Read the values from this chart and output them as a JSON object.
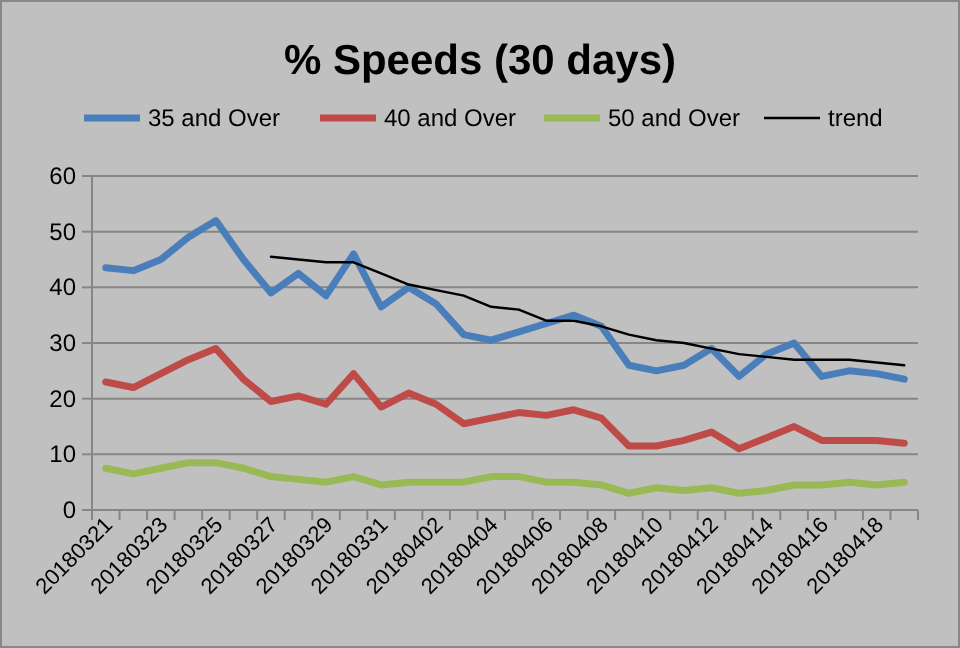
{
  "chart_data": {
    "type": "line",
    "title": "% Speeds (30 days)",
    "categories": [
      "20180321",
      null,
      "20180323",
      null,
      "20180325",
      null,
      "20180327",
      null,
      "20180329",
      null,
      "20180331",
      null,
      "20180402",
      null,
      "20180404",
      null,
      "20180406",
      null,
      "20180408",
      null,
      "20180410",
      null,
      "20180412",
      null,
      "20180414",
      null,
      "20180416",
      null,
      "20180418",
      null
    ],
    "series": [
      {
        "name": "35 and Over",
        "color": "#4a7ebb",
        "values": [
          43.5,
          43,
          45,
          49,
          52,
          45,
          39,
          42.5,
          38.5,
          46,
          36.5,
          40,
          37,
          31.5,
          30.5,
          32,
          33.5,
          35,
          33,
          26,
          25,
          26,
          29,
          24,
          28,
          30,
          24,
          25,
          24.5,
          23.5
        ]
      },
      {
        "name": "40 and Over",
        "color": "#be4b48",
        "values": [
          23,
          22,
          24.5,
          27,
          29,
          23.5,
          19.5,
          20.5,
          19,
          24.5,
          18.5,
          21,
          19,
          15.5,
          16.5,
          17.5,
          17,
          18,
          16.5,
          11.5,
          11.5,
          12.5,
          14,
          11,
          13,
          15,
          12.5,
          12.5,
          12.5,
          12
        ]
      },
      {
        "name": "50 and Over",
        "color": "#98b954",
        "values": [
          7.5,
          6.5,
          7.5,
          8.5,
          8.5,
          7.5,
          6,
          5.5,
          5,
          6,
          4.5,
          5,
          5,
          5,
          6,
          6,
          5,
          5,
          4.5,
          3,
          4,
          3.5,
          4,
          3,
          3.5,
          4.5,
          4.5,
          5,
          4.5,
          5
        ]
      },
      {
        "name": "trend",
        "color": "#000000",
        "values": [
          null,
          null,
          null,
          null,
          null,
          null,
          45.5,
          45,
          44.5,
          44.5,
          42.5,
          40.5,
          39.5,
          38.5,
          36.5,
          36,
          34,
          34,
          33,
          31.5,
          30.5,
          30,
          29,
          28,
          27.5,
          27,
          27,
          27,
          26.5,
          26
        ]
      }
    ],
    "ylim": [
      0,
      60
    ],
    "yticks": [
      0,
      10,
      20,
      30,
      40,
      50,
      60
    ],
    "grid": "y",
    "legend": "top"
  }
}
